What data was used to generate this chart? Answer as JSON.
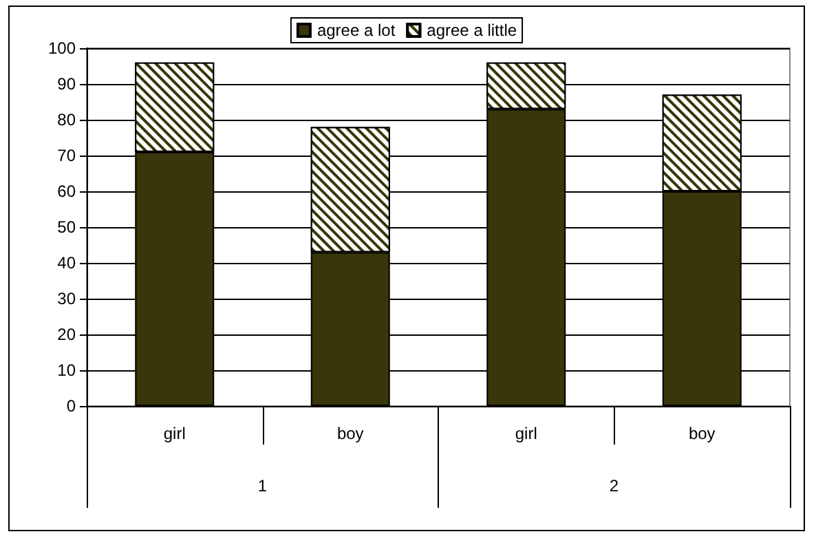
{
  "chart_data": {
    "type": "bar",
    "stacked": true,
    "categories": [
      "girl",
      "boy",
      "girl",
      "boy"
    ],
    "series": [
      {
        "name": "agree a lot",
        "color": "#38360a",
        "values": [
          71,
          43,
          83,
          60
        ]
      },
      {
        "name": "agree a little",
        "color": "#38360a",
        "values": [
          25,
          35,
          13,
          27
        ]
      }
    ],
    "annotations": [
      "1",
      "2"
    ],
    "ylim": [
      0,
      100
    ],
    "yticks": [
      0,
      10,
      20,
      30,
      40,
      50,
      60,
      70,
      80,
      90,
      100
    ],
    "grid": "y",
    "legend": "top"
  }
}
